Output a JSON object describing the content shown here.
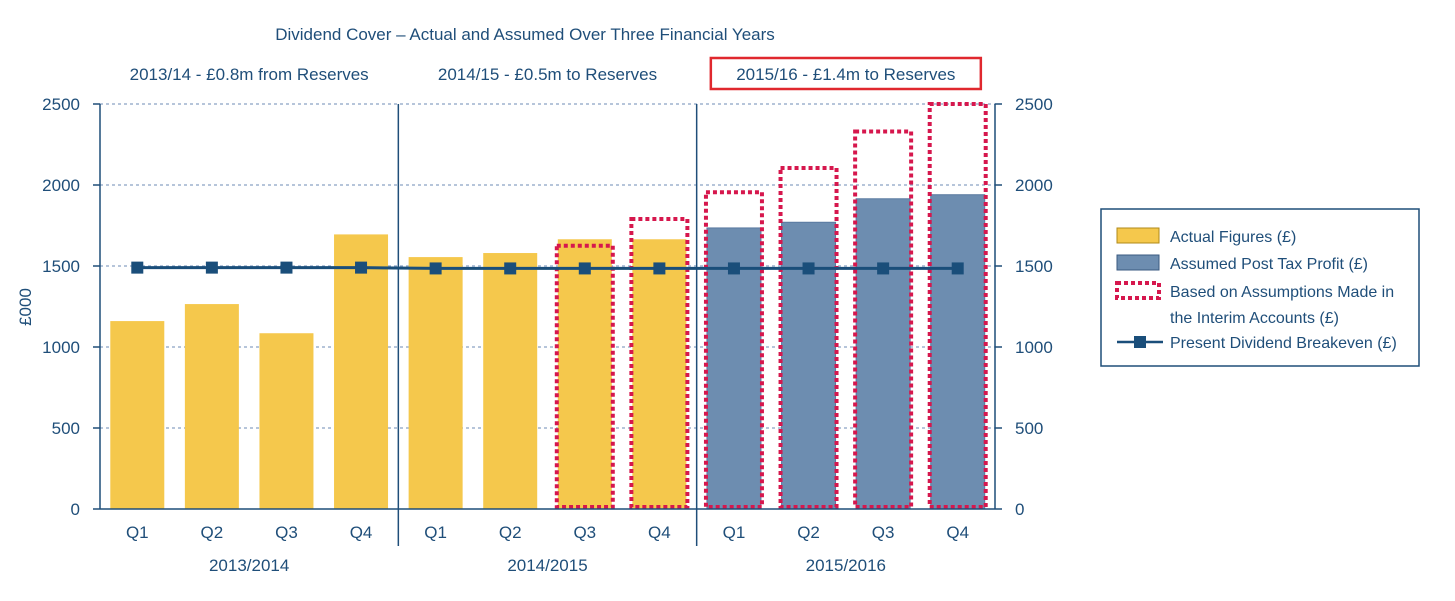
{
  "chart_data": {
    "type": "bar",
    "title": "Dividend Cover – Actual and Assumed Over Three Financial Years",
    "ylabel": "£000",
    "ylim": [
      0,
      2500
    ],
    "yticks": [
      0,
      500,
      1000,
      1500,
      2000,
      2500
    ],
    "secondary_y_axis": true,
    "grid": true,
    "legend_position": "right",
    "colors": {
      "actual": "#f5c84c",
      "assumed": "#6d8db0",
      "assumption_border": "#d6174d",
      "breakeven": "#1a4e7a",
      "axis": "#1f4e79",
      "grid": "#8aa2c4",
      "highlight_box": "#e0282e"
    },
    "periods": [
      {
        "label": "2013/2014",
        "annotation": "2013/14 - £0.8m from Reserves",
        "highlighted": false
      },
      {
        "label": "2014/2015",
        "annotation": "2014/15 - £0.5m to Reserves",
        "highlighted": false
      },
      {
        "label": "2015/2016",
        "annotation": "2015/16 - £1.4m to Reserves",
        "highlighted": true
      }
    ],
    "categories": [
      "Q1",
      "Q2",
      "Q3",
      "Q4",
      "Q1",
      "Q2",
      "Q3",
      "Q4",
      "Q1",
      "Q2",
      "Q3",
      "Q4"
    ],
    "series": [
      {
        "name": "Actual Figures (£)",
        "style": "bar",
        "values": [
          1160,
          1265,
          1085,
          1695,
          1555,
          1580,
          1665,
          1665,
          null,
          null,
          null,
          null
        ]
      },
      {
        "name": "Assumed Post Tax Profit (£)",
        "style": "bar",
        "values": [
          null,
          null,
          null,
          null,
          null,
          null,
          null,
          null,
          1735,
          1770,
          1915,
          1940
        ]
      },
      {
        "name": "Based on Assumptions Made in the Interim Accounts (£)",
        "style": "dotted-outline-bar",
        "values": [
          null,
          null,
          null,
          null,
          null,
          null,
          1625,
          1790,
          1955,
          2105,
          2330,
          2500
        ]
      },
      {
        "name": "Present Dividend Breakeven (£)",
        "style": "line-marker",
        "values": [
          1490,
          1490,
          1490,
          1490,
          1485,
          1485,
          1485,
          1485,
          1485,
          1485,
          1485,
          1485
        ]
      }
    ],
    "legend": [
      {
        "key": "actual",
        "label_lines": [
          "Actual Figures (£)"
        ]
      },
      {
        "key": "assumed",
        "label_lines": [
          "Assumed Post Tax Profit (£)"
        ]
      },
      {
        "key": "assumption",
        "label_lines": [
          "Based on Assumptions Made in",
          "the Interim Accounts (£)"
        ]
      },
      {
        "key": "breakeven",
        "label_lines": [
          "Present Dividend Breakeven (£)"
        ]
      }
    ]
  }
}
